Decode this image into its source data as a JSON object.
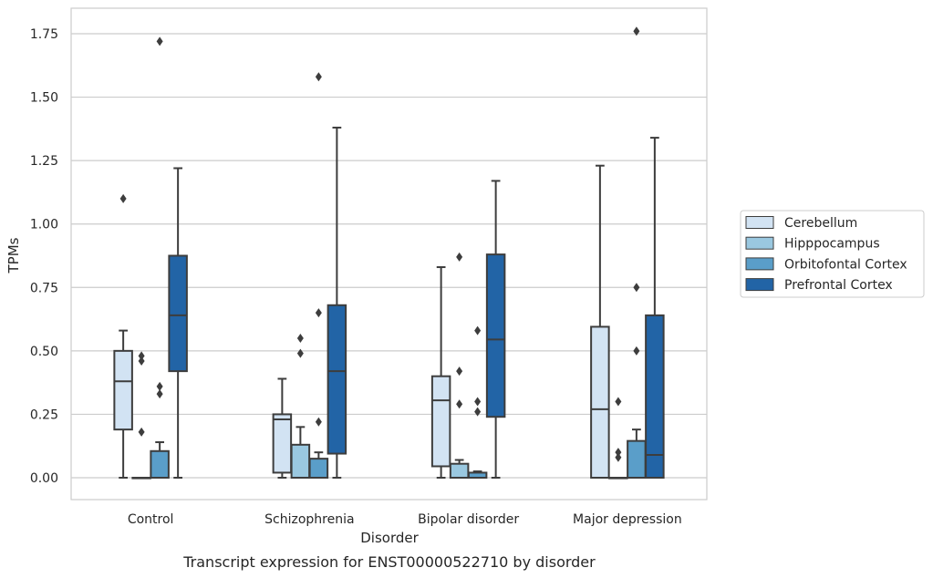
{
  "caption": "Transcript expression for ENST00000522710 by disorder",
  "chart_data": {
    "type": "boxplot",
    "xlabel": "Disorder",
    "ylabel": "TPMs",
    "ylim": [
      -0.085,
      1.85
    ],
    "y_ticks": [
      "0.00",
      "0.25",
      "0.50",
      "0.75",
      "1.00",
      "1.25",
      "1.50",
      "1.75"
    ],
    "grid": "horizontal",
    "legend_placement": "right",
    "categories": [
      "Control",
      "Schizophrenia",
      "Bipolar disorder",
      "Major depression"
    ],
    "series": [
      {
        "name": "Cerebellum",
        "color": "#d2e3f3",
        "boxes": [
          {
            "whislo": 0.0,
            "q1": 0.19,
            "med": 0.38,
            "q3": 0.5,
            "whishi": 0.58,
            "fliers": [
              1.1
            ]
          },
          {
            "whislo": 0.0,
            "q1": 0.02,
            "med": 0.23,
            "q3": 0.25,
            "whishi": 0.39,
            "fliers": []
          },
          {
            "whislo": 0.0,
            "q1": 0.045,
            "med": 0.305,
            "q3": 0.4,
            "whishi": 0.83,
            "fliers": []
          },
          {
            "whislo": 0.0,
            "q1": 0.0,
            "med": 0.27,
            "q3": 0.595,
            "whishi": 1.23,
            "fliers": []
          }
        ]
      },
      {
        "name": "Hipppocampus",
        "color": "#9ac8e0",
        "boxes": [
          {
            "whislo": 0.0,
            "q1": 0.0,
            "med": 0.0,
            "q3": 0.0,
            "whishi": 0.0,
            "fliers": [
              0.18,
              0.46,
              0.48
            ]
          },
          {
            "whislo": 0.0,
            "q1": 0.0,
            "med": 0.0,
            "q3": 0.13,
            "whishi": 0.2,
            "fliers": [
              0.49,
              0.55
            ]
          },
          {
            "whislo": 0.0,
            "q1": 0.0,
            "med": 0.0,
            "q3": 0.055,
            "whishi": 0.07,
            "fliers": [
              0.29,
              0.42,
              0.87
            ]
          },
          {
            "whislo": 0.0,
            "q1": 0.0,
            "med": 0.0,
            "q3": 0.0,
            "whishi": 0.0,
            "fliers": [
              0.08,
              0.1,
              0.3
            ]
          }
        ]
      },
      {
        "name": "Orbitofontal Cortex",
        "color": "#5a9ec9",
        "boxes": [
          {
            "whislo": 0.0,
            "q1": 0.0,
            "med": 0.0,
            "q3": 0.105,
            "whishi": 0.14,
            "fliers": [
              0.33,
              0.36,
              1.72
            ]
          },
          {
            "whislo": 0.0,
            "q1": 0.0,
            "med": 0.0,
            "q3": 0.075,
            "whishi": 0.1,
            "fliers": [
              0.22,
              0.65,
              1.58
            ]
          },
          {
            "whislo": 0.0,
            "q1": 0.0,
            "med": 0.0,
            "q3": 0.02,
            "whishi": 0.025,
            "fliers": [
              0.26,
              0.3,
              0.58
            ]
          },
          {
            "whislo": 0.0,
            "q1": 0.0,
            "med": 0.0,
            "q3": 0.145,
            "whishi": 0.19,
            "fliers": [
              0.5,
              0.75,
              1.76
            ]
          }
        ]
      },
      {
        "name": "Prefrontal Cortex",
        "color": "#2264a6",
        "boxes": [
          {
            "whislo": 0.0,
            "q1": 0.42,
            "med": 0.64,
            "q3": 0.875,
            "whishi": 1.22,
            "fliers": []
          },
          {
            "whislo": 0.0,
            "q1": 0.095,
            "med": 0.42,
            "q3": 0.68,
            "whishi": 1.38,
            "fliers": []
          },
          {
            "whislo": 0.0,
            "q1": 0.24,
            "med": 0.545,
            "q3": 0.88,
            "whishi": 1.17,
            "fliers": []
          },
          {
            "whislo": 0.0,
            "q1": 0.0,
            "med": 0.09,
            "q3": 0.64,
            "whishi": 1.34,
            "fliers": []
          }
        ]
      }
    ],
    "colors": {
      "line": "#3d3d3d",
      "grid": "#cccccc",
      "frame": "#cccccc"
    }
  }
}
